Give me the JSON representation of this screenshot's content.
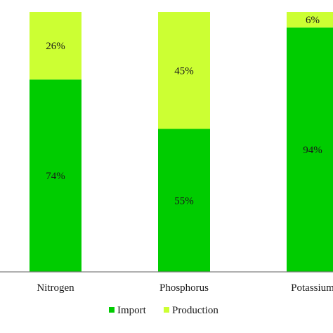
{
  "chart_data": {
    "type": "bar",
    "stacked": true,
    "percent_stacked": true,
    "categories": [
      "Nitrogen",
      "Phosphorus",
      "Potassium"
    ],
    "series": [
      {
        "name": "Import",
        "values": [
          74,
          55,
          94
        ],
        "labels": [
          "74%",
          "55%",
          "94%"
        ],
        "color": "#00cc00"
      },
      {
        "name": "Production",
        "values": [
          26,
          45,
          6
        ],
        "labels": [
          "26%",
          "45%",
          "6%"
        ],
        "color": "#ccff33"
      }
    ],
    "ylim": [
      0,
      100
    ],
    "legend_position": "bottom",
    "grid": false
  }
}
